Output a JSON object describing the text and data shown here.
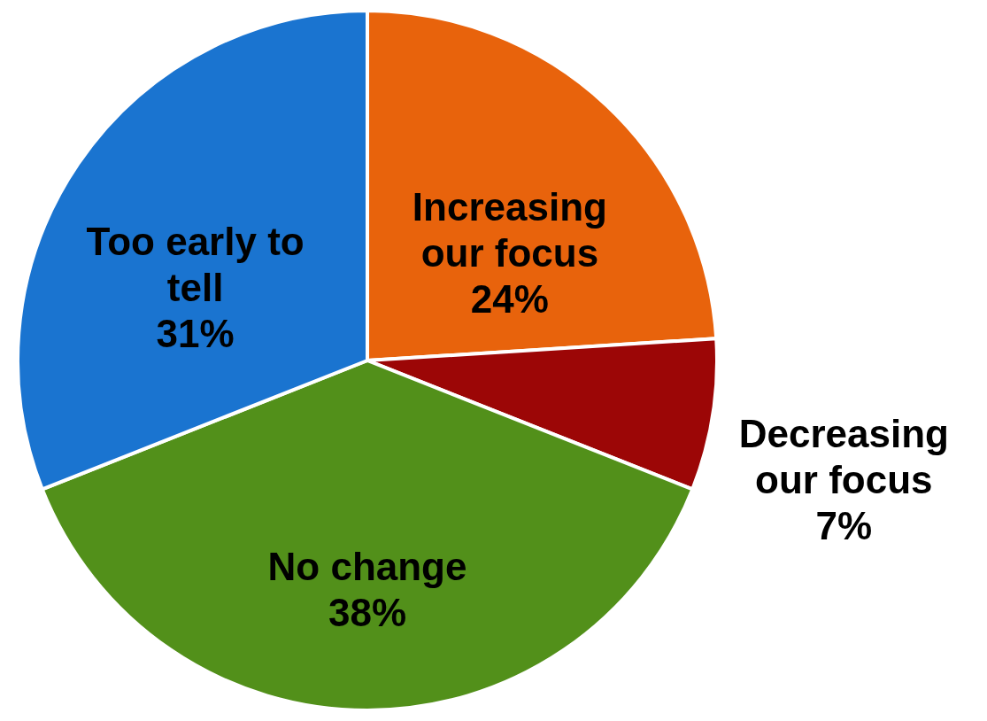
{
  "chart_data": {
    "type": "pie",
    "categories": [
      "Increasing our focus",
      "Decreasing our focus",
      "No change",
      "Too early to tell"
    ],
    "values": [
      24,
      7,
      38,
      31
    ],
    "colors": [
      "#e8630c",
      "#9c0606",
      "#52901a",
      "#1a74d0"
    ],
    "value_labels": [
      "24%",
      "7%",
      "38%",
      "31%"
    ]
  }
}
